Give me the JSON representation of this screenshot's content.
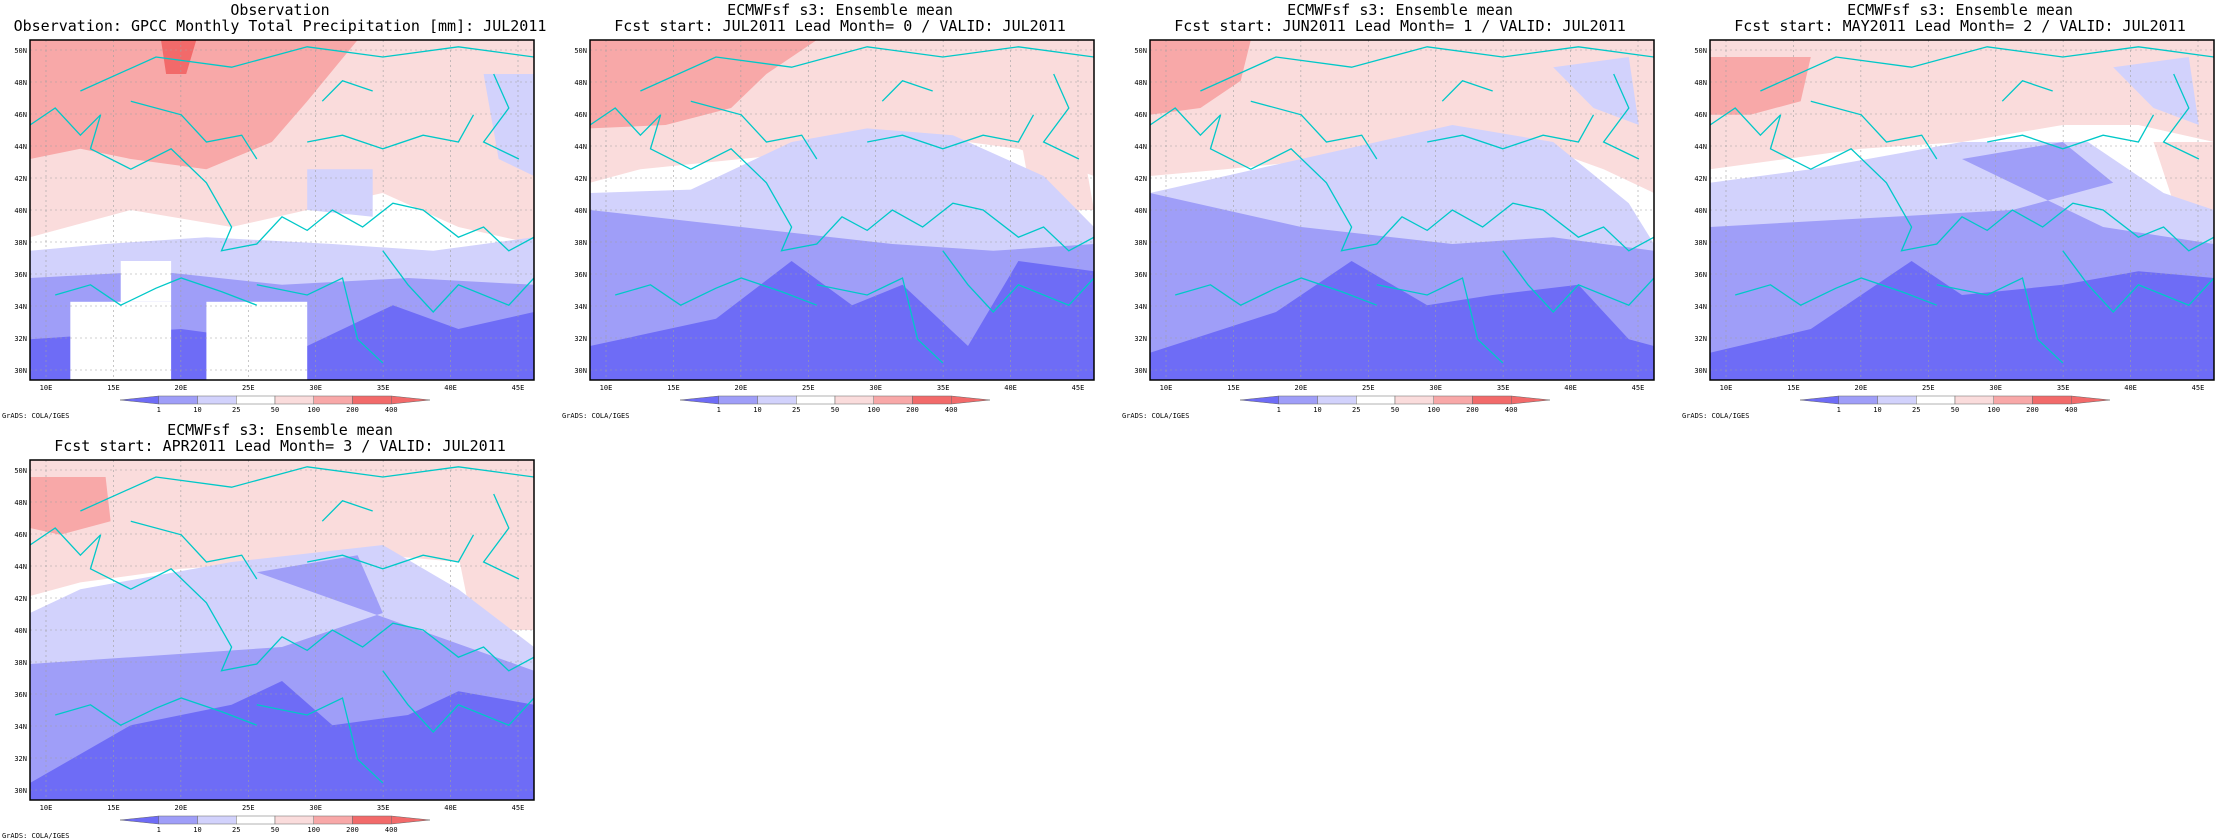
{
  "panels": [
    {
      "title1": "Observation",
      "title2": "Observation: GPCC Monthly Total Precipitation [mm]: JUL2011",
      "credit": "GrADS: COLA/IGES"
    },
    {
      "title1": "ECMWFsf s3: Ensemble mean",
      "title2": "Fcst start: JUL2011  Lead Month= 0 / VALID: JUL2011",
      "credit": "GrADS: COLA/IGES"
    },
    {
      "title1": "ECMWFsf s3: Ensemble mean",
      "title2": "Fcst start: JUN2011  Lead Month= 1 / VALID: JUL2011",
      "credit": "GrADS: COLA/IGES"
    },
    {
      "title1": "ECMWFsf s3: Ensemble mean",
      "title2": "Fcst start: MAY2011  Lead Month= 2 / VALID: JUL2011",
      "credit": "GrADS: COLA/IGES"
    },
    {
      "title1": "ECMWFsf s3: Ensemble mean",
      "title2": "Fcst start: APR2011  Lead Month= 3 / VALID: JUL2011",
      "credit": "GrADS: COLA/IGES"
    }
  ],
  "lat_labels": [
    "50N",
    "48N",
    "46N",
    "44N",
    "42N",
    "40N",
    "38N",
    "36N",
    "34N",
    "32N",
    "30N"
  ],
  "lon_labels": [
    "10E",
    "15E",
    "20E",
    "25E",
    "30E",
    "35E",
    "40E",
    "45E"
  ],
  "colorbar_labels": [
    "1",
    "10",
    "25",
    "50",
    "100",
    "200",
    "400"
  ],
  "colors": {
    "blue_dark": "#6e6cf6",
    "blue_mid": "#9f9ef8",
    "blue_light": "#d2d2fc",
    "red_light": "#fadcdc",
    "red_mid": "#f8a8a8",
    "red_dark": "#f26a6a",
    "coast": "#00c8c8",
    "grid": "#a0a0a0"
  }
}
